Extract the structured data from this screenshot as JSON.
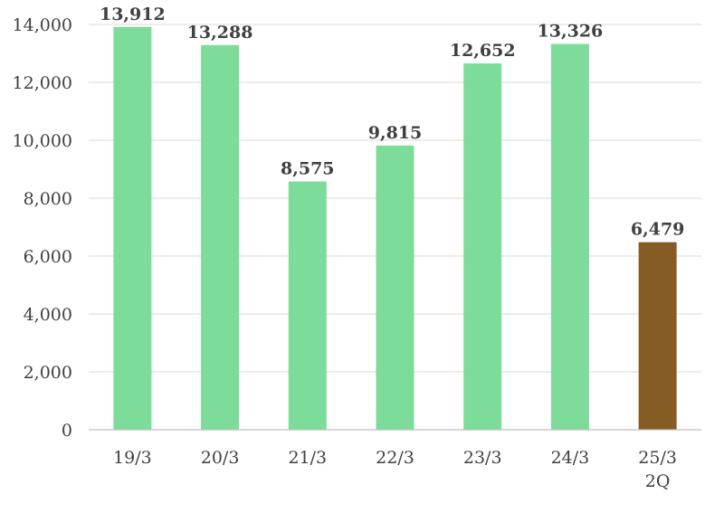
{
  "chart_data": {
    "type": "bar",
    "categories": [
      "19/3",
      "20/3",
      "21/3",
      "22/3",
      "23/3",
      "24/3",
      "25/3\n2Q"
    ],
    "values": [
      13912,
      13288,
      8575,
      9815,
      12652,
      13326,
      6479
    ],
    "value_labels": [
      "13,912",
      "13,288",
      "8,575",
      "9,815",
      "12,652",
      "13,326",
      "6,479"
    ],
    "ylim": [
      0,
      14000
    ],
    "yticks": [
      0,
      2000,
      4000,
      6000,
      8000,
      10000,
      12000,
      14000
    ],
    "ytick_labels": [
      "0",
      "2,000",
      "4,000",
      "6,000",
      "8,000",
      "10,000",
      "12,000",
      "14,000"
    ],
    "bar_colors": [
      "#7ddc9a",
      "#7ddc9a",
      "#7ddc9a",
      "#7ddc9a",
      "#7ddc9a",
      "#7ddc9a",
      "#855c24"
    ],
    "grid": true,
    "legend": "none",
    "title": "",
    "xlabel": "",
    "ylabel": ""
  }
}
